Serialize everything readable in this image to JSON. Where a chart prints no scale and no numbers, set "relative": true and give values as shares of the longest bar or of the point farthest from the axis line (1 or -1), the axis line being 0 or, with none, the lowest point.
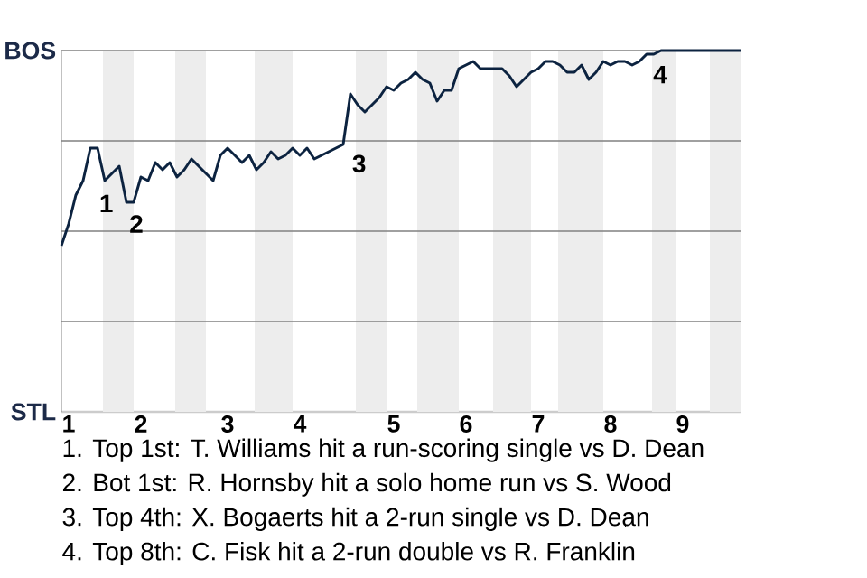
{
  "chart_data": {
    "type": "line",
    "relative": true,
    "categories": [
      null,
      "1",
      null,
      null,
      null,
      null,
      null,
      null,
      null,
      null,
      null,
      "2",
      null,
      null,
      null,
      null,
      null,
      null,
      null,
      null,
      null,
      null,
      null,
      "3",
      null,
      null,
      null,
      null,
      null,
      null,
      null,
      null,
      null,
      "4",
      null,
      null,
      null,
      null,
      null,
      null,
      null,
      null,
      null,
      null,
      null,
      null,
      "5",
      null,
      null,
      null,
      null,
      null,
      null,
      null,
      null,
      null,
      "6",
      null,
      null,
      null,
      null,
      null,
      null,
      null,
      null,
      null,
      "7",
      null,
      null,
      null,
      null,
      null,
      null,
      null,
      null,
      null,
      "8",
      null,
      null,
      null,
      null,
      null,
      null,
      null,
      null,
      null,
      "9",
      null,
      null,
      null,
      null,
      null,
      null,
      null,
      null
    ],
    "series": [
      {
        "color": "#0c2340",
        "values": [
          0.46,
          0.52,
          0.6,
          0.64,
          0.73,
          0.73,
          0.64,
          0.66,
          0.68,
          0.58,
          0.58,
          0.65,
          0.64,
          0.69,
          0.67,
          0.69,
          0.65,
          0.67,
          0.7,
          0.68,
          0.66,
          0.64,
          0.71,
          0.73,
          0.71,
          0.69,
          0.71,
          0.67,
          0.69,
          0.72,
          0.7,
          0.71,
          0.73,
          0.71,
          0.73,
          0.7,
          0.71,
          0.72,
          0.73,
          0.74,
          0.88,
          0.85,
          0.83,
          0.85,
          0.87,
          0.9,
          0.89,
          0.91,
          0.92,
          0.94,
          0.92,
          0.91,
          0.86,
          0.89,
          0.89,
          0.95,
          0.96,
          0.97,
          0.95,
          0.95,
          0.95,
          0.95,
          0.93,
          0.9,
          0.92,
          0.94,
          0.95,
          0.97,
          0.97,
          0.96,
          0.94,
          0.94,
          0.96,
          0.92,
          0.94,
          0.97,
          0.96,
          0.97,
          0.97,
          0.96,
          0.97,
          0.99,
          0.99,
          1,
          1,
          1,
          1,
          1,
          1,
          1,
          1,
          1,
          1,
          1,
          1
        ]
      }
    ],
    "ref_lines": [
      {
        "axis": "y",
        "value": 0.25,
        "color": "#808080"
      },
      {
        "axis": "y",
        "value": 0.5,
        "color": "#808080"
      },
      {
        "axis": "y",
        "value": 0.75,
        "color": "#808080"
      },
      {
        "axis": "y",
        "value": 1,
        "color": "#808080"
      }
    ],
    "annotations": [
      "BOS",
      "STL",
      "1",
      "2",
      "3",
      "4",
      "1. Top 1st: T. Williams hit a run-scoring single vs D. Dean",
      "2. Bot 1st: R. Hornsby hit a solo home run vs S. Wood",
      "3. Top 4th: X. Bogaerts hit a 2-run single vs D. Dean",
      "4. Top 8th: C. Fisk hit a 2-run double vs R. Franklin"
    ]
  }
}
